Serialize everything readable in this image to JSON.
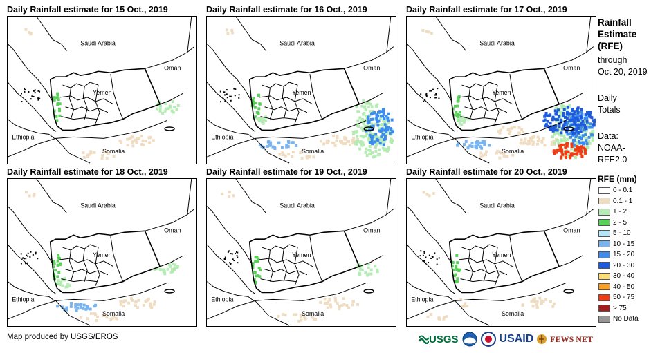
{
  "panels": [
    {
      "title": "Daily Rainfall estimate for 15 Oct., 2019",
      "intensity": 1
    },
    {
      "title": "Daily Rainfall estimate for 16 Oct., 2019",
      "intensity": 3
    },
    {
      "title": "Daily Rainfall estimate for 17 Oct., 2019",
      "intensity": 4
    },
    {
      "title": "Daily Rainfall estimate for 18 Oct., 2019",
      "intensity": 2
    },
    {
      "title": "Daily Rainfall estimate for 19 Oct., 2019",
      "intensity": 1
    },
    {
      "title": "Daily Rainfall estimate for 20 Oct., 2019",
      "intensity": 0
    }
  ],
  "map_labels": {
    "saudi": "Saudi Arabia",
    "oman": "Oman",
    "yemen": "Yemen",
    "ethiopia": "Ethiopia",
    "somalia": "Somalia"
  },
  "legend": {
    "title": "Rainfall Estimate (RFE)",
    "through": "through",
    "date": "Oct 20, 2019",
    "daily": "Daily Totals",
    "data_label": "Data:",
    "data_source": "NOAA-RFE2.0",
    "rfe_heading": "RFE (mm)",
    "classes": [
      {
        "label": "0 - 0.1",
        "color": "#ffffff"
      },
      {
        "label": "0.1 - 1",
        "color": "#f0dcc0"
      },
      {
        "label": "1 - 2",
        "color": "#b4ecb4"
      },
      {
        "label": "2 - 5",
        "color": "#5ad05a"
      },
      {
        "label": "5 - 10",
        "color": "#b4e6f8"
      },
      {
        "label": "10 - 15",
        "color": "#78b4f0"
      },
      {
        "label": "15 - 20",
        "color": "#3c8cf0"
      },
      {
        "label": "20 - 30",
        "color": "#1e5adc"
      },
      {
        "label": "30 - 40",
        "color": "#fadc78"
      },
      {
        "label": "40 - 50",
        "color": "#faa028"
      },
      {
        "label": "50 - 75",
        "color": "#f03c14"
      },
      {
        "label": "> 75",
        "color": "#a01e1e"
      },
      {
        "label": "No Data",
        "color": "#969696"
      }
    ]
  },
  "footer": "Map produced by USGS/EROS",
  "logos": {
    "usgs": "USGS",
    "usaid": "USAID",
    "fewsnet": "FEWS NET"
  }
}
